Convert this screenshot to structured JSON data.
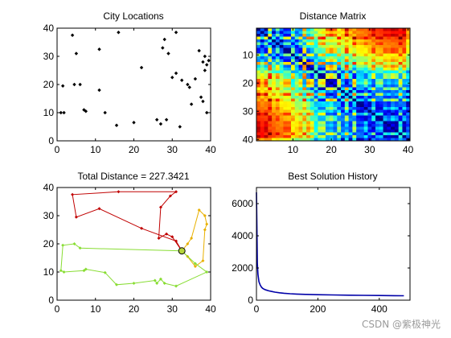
{
  "watermark": "CSDN @紫极神光",
  "colors": {
    "axis": "#000000",
    "scatter": "#000000",
    "history": "#0000a8",
    "route_red": "#c00000",
    "route_orange": "#e8b000",
    "route_green": "#88dd33"
  },
  "chart_data": [
    {
      "type": "scatter",
      "title": "City Locations",
      "xlim": [
        0,
        40
      ],
      "ylim": [
        0,
        40
      ],
      "xticks": [
        "0",
        "10",
        "20",
        "30",
        "40"
      ],
      "yticks": [
        "0",
        "10",
        "20",
        "30",
        "40"
      ],
      "points": [
        [
          1,
          10
        ],
        [
          1.5,
          19.5
        ],
        [
          1.8,
          10
        ],
        [
          4,
          37.5
        ],
        [
          4.5,
          20
        ],
        [
          5,
          31
        ],
        [
          6,
          20
        ],
        [
          7,
          11
        ],
        [
          7.5,
          10.5
        ],
        [
          11,
          32.5
        ],
        [
          11,
          18
        ],
        [
          12.5,
          10
        ],
        [
          16,
          38.5
        ],
        [
          15.5,
          5.5
        ],
        [
          20,
          6.5
        ],
        [
          22,
          26
        ],
        [
          26,
          7.5
        ],
        [
          27,
          6
        ],
        [
          27.5,
          33
        ],
        [
          28,
          36
        ],
        [
          29,
          31
        ],
        [
          28.5,
          7.5
        ],
        [
          30,
          22.5
        ],
        [
          31,
          38.5
        ],
        [
          31,
          24
        ],
        [
          32,
          5
        ],
        [
          34,
          20
        ],
        [
          34.5,
          19
        ],
        [
          35,
          13
        ],
        [
          36,
          22
        ],
        [
          37,
          32
        ],
        [
          37.5,
          15.5
        ],
        [
          38,
          14
        ],
        [
          38,
          28
        ],
        [
          38.5,
          25
        ],
        [
          38.5,
          30
        ],
        [
          39,
          27
        ],
        [
          39,
          10
        ],
        [
          39.5,
          28.5
        ],
        [
          32.5,
          21.5
        ]
      ]
    },
    {
      "type": "heatmap",
      "title": "Distance Matrix",
      "xlim": [
        0.5,
        40.5
      ],
      "ylim": [
        0.5,
        40.5
      ],
      "xticks": [
        "10",
        "20",
        "30",
        "40"
      ],
      "yticks": [
        "10",
        "20",
        "30",
        "40"
      ],
      "colormap": "jet",
      "n": 40
    },
    {
      "type": "line",
      "title": "Total Distance = 227.3421",
      "xlim": [
        0,
        40
      ],
      "ylim": [
        0,
        40
      ],
      "xticks": [
        "0",
        "10",
        "20",
        "30",
        "40"
      ],
      "yticks": [
        "0",
        "10",
        "20",
        "30",
        "40"
      ],
      "start_point": [
        32.5,
        17.5
      ],
      "routes": [
        {
          "color": "#c00000",
          "points": [
            [
              32.5,
              17.5
            ],
            [
              30,
              22.5
            ],
            [
              28.5,
              23.5
            ],
            [
              26.5,
              22
            ],
            [
              27,
              33
            ],
            [
              29.5,
              37
            ],
            [
              31,
              38.5
            ],
            [
              16,
              38.5
            ],
            [
              4,
              37.5
            ],
            [
              5,
              29.5
            ],
            [
              11,
              32.5
            ],
            [
              22,
              25.5
            ],
            [
              31,
              21
            ],
            [
              32.5,
              17.5
            ]
          ]
        },
        {
          "color": "#e8b000",
          "points": [
            [
              32.5,
              17.5
            ],
            [
              34,
              20
            ],
            [
              35,
              22
            ],
            [
              37,
              32
            ],
            [
              38.5,
              30
            ],
            [
              39,
              27
            ],
            [
              38.5,
              25
            ],
            [
              38,
              14
            ],
            [
              36,
              12
            ],
            [
              34,
              15.5
            ],
            [
              32.5,
              17.5
            ]
          ]
        },
        {
          "color": "#88dd33",
          "points": [
            [
              32.5,
              17.5
            ],
            [
              6,
              18.5
            ],
            [
              4.5,
              20
            ],
            [
              1.5,
              19.5
            ],
            [
              1,
              10.5
            ],
            [
              1.8,
              10
            ],
            [
              7,
              10.5
            ],
            [
              7.5,
              11
            ],
            [
              12.5,
              9.8
            ],
            [
              15.5,
              5.5
            ],
            [
              20,
              6
            ],
            [
              25.5,
              7
            ],
            [
              26,
              6
            ],
            [
              27,
              7.5
            ],
            [
              28,
              6
            ],
            [
              31,
              5
            ],
            [
              39,
              10
            ],
            [
              36,
              13
            ],
            [
              32.5,
              17.5
            ]
          ]
        }
      ]
    },
    {
      "type": "line",
      "title": "Best Solution History",
      "xlim": [
        0,
        500
      ],
      "ylim": [
        0,
        7000
      ],
      "xticks": [
        "0",
        "200",
        "400"
      ],
      "yticks": [
        "0",
        "2000",
        "4000",
        "6000"
      ],
      "series": [
        {
          "x": [
            0,
            1,
            2,
            3,
            5,
            8,
            12,
            16,
            20,
            25,
            30,
            40,
            50,
            60,
            75,
            90,
            110,
            130,
            160,
            200,
            250,
            300,
            350,
            400,
            450,
            480
          ],
          "values": [
            6700,
            5200,
            3600,
            2300,
            1600,
            1150,
            950,
            820,
            740,
            680,
            640,
            580,
            540,
            500,
            460,
            430,
            400,
            380,
            360,
            340,
            325,
            310,
            300,
            290,
            280,
            275
          ]
        }
      ]
    }
  ]
}
